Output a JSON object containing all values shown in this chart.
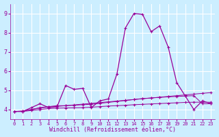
{
  "x": [
    0,
    1,
    2,
    3,
    4,
    5,
    6,
    7,
    8,
    9,
    10,
    11,
    12,
    13,
    14,
    15,
    16,
    17,
    18,
    19,
    20,
    21,
    22,
    23
  ],
  "line_main": [
    3.9,
    3.9,
    4.1,
    4.3,
    4.1,
    4.15,
    5.25,
    5.05,
    5.1,
    4.1,
    4.45,
    4.55,
    5.85,
    8.25,
    9.0,
    8.95,
    8.05,
    8.35,
    7.25,
    5.4,
    4.7,
    4.0,
    4.45,
    4.3
  ],
  "line2": [
    3.9,
    3.92,
    4.0,
    4.1,
    4.15,
    4.2,
    4.2,
    4.22,
    4.25,
    4.27,
    4.32,
    4.37,
    4.42,
    4.47,
    4.52,
    4.57,
    4.6,
    4.63,
    4.66,
    4.68,
    4.7,
    4.72,
    4.3,
    4.3
  ],
  "line3": [
    3.9,
    3.92,
    4.0,
    4.08,
    4.12,
    4.16,
    4.2,
    4.24,
    4.28,
    4.32,
    4.36,
    4.4,
    4.44,
    4.48,
    4.52,
    4.56,
    4.6,
    4.64,
    4.68,
    4.72,
    4.76,
    4.8,
    4.84,
    4.88
  ],
  "line4": [
    3.9,
    3.9,
    3.95,
    4.0,
    4.05,
    4.07,
    4.08,
    4.09,
    4.1,
    4.12,
    4.15,
    4.18,
    4.2,
    4.22,
    4.25,
    4.27,
    4.29,
    4.31,
    4.33,
    4.35,
    4.37,
    4.38,
    4.38,
    4.38
  ],
  "color": "#990099",
  "bg_color": "#cceeff",
  "grid_color": "#aaddcc",
  "xlabel": "Windchill (Refroidissement éolien,°C)",
  "ylim": [
    3.5,
    9.5
  ],
  "xlim_min": -0.5,
  "xlim_max": 23.5,
  "yticks": [
    4,
    5,
    6,
    7,
    8,
    9
  ],
  "xticks": [
    0,
    1,
    2,
    3,
    4,
    5,
    6,
    7,
    8,
    9,
    10,
    11,
    12,
    13,
    14,
    15,
    16,
    17,
    18,
    19,
    20,
    21,
    22,
    23
  ]
}
